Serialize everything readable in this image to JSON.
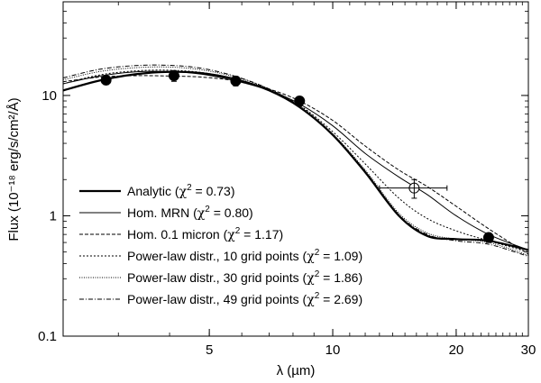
{
  "chart_data": {
    "type": "line",
    "xlabel": "λ (µm)",
    "ylabel": "Flux (10⁻¹⁸ erg/s/cm²/Å)",
    "xscale": "log",
    "yscale": "log",
    "xlim": [
      2.2,
      30
    ],
    "ylim": [
      0.1,
      60
    ],
    "xticks": [
      {
        "v": 5,
        "label": "5"
      },
      {
        "v": 10,
        "label": "10"
      },
      {
        "v": 20,
        "label": "20"
      },
      {
        "v": 30,
        "label": "30"
      }
    ],
    "yticks": [
      {
        "v": 0.1,
        "label": "0.1"
      },
      {
        "v": 1,
        "label": "1"
      },
      {
        "v": 10,
        "label": "10"
      }
    ],
    "legend_position": "bottom-left",
    "series": [
      {
        "name": "Analytic",
        "chi2": "0.73",
        "style": "thick",
        "x": [
          2.2,
          2.7,
          3.3,
          4.0,
          4.8,
          5.8,
          7.0,
          8.3,
          10.0,
          12.0,
          14.5,
          17.0,
          20.0,
          24.0,
          30.0
        ],
        "y": [
          11.0,
          13.3,
          15.0,
          15.7,
          15.3,
          13.6,
          11.0,
          8.0,
          4.7,
          2.3,
          1.0,
          0.68,
          0.64,
          0.62,
          0.52
        ]
      },
      {
        "name": "Hom. MRN",
        "chi2": "0.80",
        "style": "solid",
        "x": [
          2.2,
          2.7,
          3.3,
          4.0,
          4.8,
          5.8,
          7.0,
          8.3,
          10.0,
          12.0,
          14.5,
          17.0,
          20.0,
          24.0,
          30.0
        ],
        "y": [
          12.5,
          14.5,
          15.7,
          15.8,
          15.0,
          13.2,
          11.0,
          8.5,
          5.6,
          3.3,
          2.1,
          1.5,
          1.0,
          0.7,
          0.52
        ]
      },
      {
        "name": "Hom. 0.1 micron",
        "chi2": "1.17",
        "style": "dashed",
        "x": [
          2.2,
          2.7,
          3.3,
          4.0,
          4.8,
          5.8,
          7.0,
          8.3,
          10.0,
          12.0,
          14.5,
          17.0,
          20.0,
          24.0,
          30.0
        ],
        "y": [
          13.0,
          14.2,
          14.6,
          14.5,
          14.2,
          13.2,
          11.3,
          9.0,
          6.2,
          3.8,
          2.4,
          1.75,
          1.2,
          0.78,
          0.48
        ]
      },
      {
        "name": "Power-law distr., 10 grid points",
        "chi2": "1.09",
        "style": "dotted",
        "x": [
          2.2,
          2.7,
          3.3,
          4.0,
          4.8,
          5.8,
          7.0,
          8.3,
          10.0,
          12.0,
          14.5,
          17.0,
          20.0,
          24.0,
          30.0
        ],
        "y": [
          12.5,
          14.8,
          16.0,
          16.2,
          15.5,
          13.7,
          11.2,
          8.3,
          5.0,
          2.7,
          1.4,
          0.95,
          0.75,
          0.62,
          0.5
        ]
      },
      {
        "name": "Power-law distr., 30 grid points",
        "chi2": "1.86",
        "style": "finedot",
        "x": [
          2.2,
          2.7,
          3.3,
          4.0,
          4.8,
          5.8,
          7.0,
          8.3,
          10.0,
          12.0,
          14.5,
          17.0,
          20.0,
          24.0,
          30.0
        ],
        "y": [
          13.5,
          15.8,
          17.0,
          17.2,
          16.3,
          14.2,
          11.3,
          8.2,
          4.8,
          2.4,
          1.05,
          0.72,
          0.64,
          0.6,
          0.47
        ]
      },
      {
        "name": "Power-law distr., 49 grid points",
        "chi2": "2.69",
        "style": "dashdot",
        "x": [
          2.2,
          2.7,
          3.3,
          4.0,
          4.8,
          5.8,
          7.0,
          8.3,
          10.0,
          12.0,
          14.5,
          17.0,
          20.0,
          24.0,
          30.0
        ],
        "y": [
          14.0,
          16.5,
          17.7,
          17.8,
          16.8,
          14.4,
          11.3,
          8.1,
          4.7,
          2.35,
          1.02,
          0.7,
          0.62,
          0.58,
          0.46
        ]
      }
    ],
    "observations": [
      {
        "x": 2.8,
        "y": 13.4,
        "yerr": 1.1,
        "filled": true
      },
      {
        "x": 4.1,
        "y": 14.6,
        "yerr": 1.5,
        "filled": true
      },
      {
        "x": 5.8,
        "y": 13.2,
        "yerr": 1.2,
        "filled": true
      },
      {
        "x": 8.3,
        "y": 9.0,
        "yerr": 0.8,
        "filled": true
      },
      {
        "x": 15.8,
        "y": 1.7,
        "yerr": 0.3,
        "xerr": [
          13.0,
          19.0
        ],
        "filled": false
      },
      {
        "x": 24.0,
        "y": 0.66,
        "yerr": 0.06,
        "filled": true
      }
    ]
  }
}
